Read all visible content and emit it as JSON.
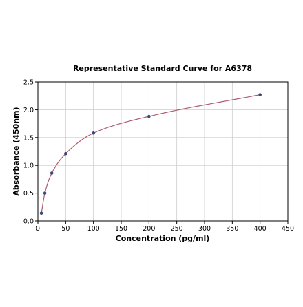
{
  "chart_data": {
    "type": "scatter",
    "title": "Representative Standard Curve for A6378",
    "xlabel": "Concentration (pg/ml)",
    "ylabel": "Absorbance (450nm)",
    "xlim": [
      0,
      450
    ],
    "ylim": [
      0,
      2.5
    ],
    "xticks": [
      0,
      50,
      100,
      150,
      200,
      250,
      300,
      350,
      400,
      450
    ],
    "yticks": [
      0.0,
      0.5,
      1.0,
      1.5,
      2.0,
      2.5
    ],
    "xtick_labels": [
      "0",
      "50",
      "100",
      "150",
      "200",
      "250",
      "300",
      "350",
      "400",
      "450"
    ],
    "ytick_labels": [
      "0.0",
      "0.5",
      "1.0",
      "1.5",
      "2.0",
      "2.5"
    ],
    "grid": true,
    "points": [
      {
        "x": 6.25,
        "y": 0.14
      },
      {
        "x": 12.5,
        "y": 0.5
      },
      {
        "x": 25,
        "y": 0.86
      },
      {
        "x": 50,
        "y": 1.21
      },
      {
        "x": 100,
        "y": 1.58
      },
      {
        "x": 200,
        "y": 1.88
      },
      {
        "x": 400,
        "y": 2.27
      }
    ],
    "fit_curve": "smooth fitted curve through standard points",
    "colors": {
      "points": "#3a4a7a",
      "curve": "#b05a6e",
      "grid": "#cccccc",
      "axis": "#000000"
    }
  }
}
